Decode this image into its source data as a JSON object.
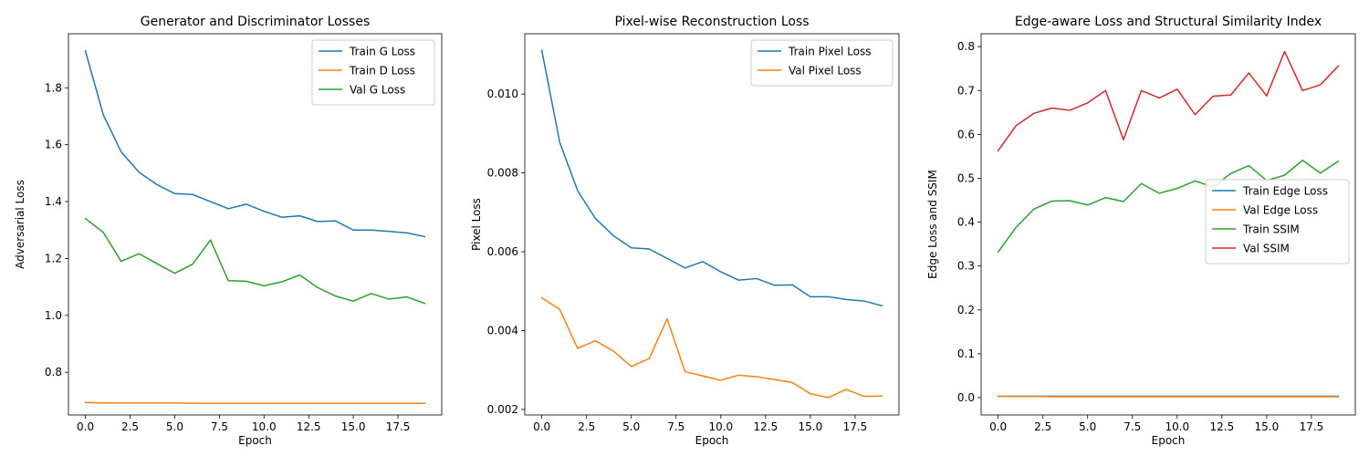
{
  "chart_data": [
    {
      "type": "line",
      "title": "Generator and Discriminator Losses",
      "xlabel": "Epoch",
      "ylabel": "Adversarial Loss",
      "xlim": [
        -0.95,
        19.95
      ],
      "ylim": [
        0.65,
        1.99
      ],
      "xticks": [
        0,
        2.5,
        5,
        7.5,
        10,
        12.5,
        15,
        17.5
      ],
      "xtick_labels": [
        "0.0",
        "2.5",
        "5.0",
        "7.5",
        "10.0",
        "12.5",
        "15.0",
        "17.5"
      ],
      "yticks": [
        0.8,
        1.0,
        1.2,
        1.4,
        1.6,
        1.8
      ],
      "ytick_labels": [
        "0.8",
        "1.0",
        "1.2",
        "1.4",
        "1.6",
        "1.8"
      ],
      "grid": false,
      "legend_position": "top-right",
      "x": [
        0,
        1,
        2,
        3,
        4,
        5,
        6,
        7,
        8,
        9,
        10,
        11,
        12,
        13,
        14,
        15,
        16,
        17,
        18,
        19
      ],
      "series": [
        {
          "name": "Train G Loss",
          "color": "#1f77b4",
          "values": [
            1.93,
            1.705,
            1.575,
            1.503,
            1.46,
            1.428,
            1.425,
            1.4,
            1.375,
            1.391,
            1.366,
            1.345,
            1.35,
            1.33,
            1.332,
            1.3,
            1.3,
            1.295,
            1.29,
            1.277
          ]
        },
        {
          "name": "Train D Loss",
          "color": "#ff7f0e",
          "values": [
            0.694,
            0.692,
            0.692,
            0.692,
            0.692,
            0.692,
            0.691,
            0.691,
            0.691,
            0.691,
            0.691,
            0.691,
            0.691,
            0.691,
            0.691,
            0.691,
            0.691,
            0.691,
            0.691,
            0.691
          ]
        },
        {
          "name": "Val G Loss",
          "color": "#2ca02c",
          "values": [
            1.34,
            1.292,
            1.19,
            1.217,
            1.182,
            1.148,
            1.18,
            1.265,
            1.122,
            1.12,
            1.104,
            1.118,
            1.142,
            1.098,
            1.068,
            1.05,
            1.077,
            1.057,
            1.065,
            1.042
          ]
        }
      ]
    },
    {
      "type": "line",
      "title": "Pixel-wise Reconstruction Loss",
      "xlabel": "Epoch",
      "ylabel": "Pixel Loss",
      "xlim": [
        -0.95,
        19.95
      ],
      "ylim": [
        0.00186,
        0.01153
      ],
      "xticks": [
        0,
        2.5,
        5,
        7.5,
        10,
        12.5,
        15,
        17.5
      ],
      "xtick_labels": [
        "0.0",
        "2.5",
        "5.0",
        "7.5",
        "10.0",
        "12.5",
        "15.0",
        "17.5"
      ],
      "yticks": [
        0.002,
        0.004,
        0.006,
        0.008,
        0.01
      ],
      "ytick_labels": [
        "0.002",
        "0.004",
        "0.006",
        "0.008",
        "0.010"
      ],
      "grid": false,
      "legend_position": "top-right",
      "x": [
        0,
        1,
        2,
        3,
        4,
        5,
        6,
        7,
        8,
        9,
        10,
        11,
        12,
        13,
        14,
        15,
        16,
        17,
        18,
        19
      ],
      "series": [
        {
          "name": "Train Pixel Loss",
          "color": "#1f77b4",
          "values": [
            0.01111,
            0.00878,
            0.00755,
            0.00684,
            0.00641,
            0.0061,
            0.00607,
            0.00583,
            0.00559,
            0.00575,
            0.00549,
            0.00528,
            0.00532,
            0.00515,
            0.00516,
            0.00486,
            0.00486,
            0.00479,
            0.00475,
            0.00463
          ]
        },
        {
          "name": "Val Pixel Loss",
          "color": "#ff7f0e",
          "values": [
            0.00483,
            0.00454,
            0.00355,
            0.00374,
            0.00348,
            0.00309,
            0.00329,
            0.0043,
            0.00296,
            0.00285,
            0.00274,
            0.00287,
            0.00283,
            0.00276,
            0.00268,
            0.0024,
            0.0023,
            0.00251,
            0.00233,
            0.00234
          ]
        }
      ]
    },
    {
      "type": "line",
      "title": "Edge-aware Loss and Structural Similarity Index",
      "xlabel": "Epoch",
      "ylabel": "Edge Loss and SSIM",
      "xlim": [
        -0.95,
        19.95
      ],
      "ylim": [
        -0.0395,
        0.8295
      ],
      "xticks": [
        0,
        2.5,
        5,
        7.5,
        10,
        12.5,
        15,
        17.5
      ],
      "xtick_labels": [
        "0.0",
        "2.5",
        "5.0",
        "7.5",
        "10.0",
        "12.5",
        "15.0",
        "17.5"
      ],
      "yticks": [
        0.0,
        0.1,
        0.2,
        0.3,
        0.4,
        0.5,
        0.6,
        0.7,
        0.8
      ],
      "ytick_labels": [
        "0.0",
        "0.1",
        "0.2",
        "0.3",
        "0.4",
        "0.5",
        "0.6",
        "0.7",
        "0.8"
      ],
      "grid": false,
      "legend_position": "center-right",
      "x": [
        0,
        1,
        2,
        3,
        4,
        5,
        6,
        7,
        8,
        9,
        10,
        11,
        12,
        13,
        14,
        15,
        16,
        17,
        18,
        19
      ],
      "series": [
        {
          "name": "Train Edge Loss",
          "color": "#1f77b4",
          "values": [
            0.003,
            0.003,
            0.003,
            0.003,
            0.003,
            0.003,
            0.003,
            0.003,
            0.003,
            0.003,
            0.003,
            0.003,
            0.003,
            0.003,
            0.003,
            0.003,
            0.003,
            0.003,
            0.003,
            0.003
          ]
        },
        {
          "name": "Val Edge Loss",
          "color": "#ff7f0e",
          "values": [
            0.003,
            0.003,
            0.003,
            0.002,
            0.002,
            0.002,
            0.002,
            0.002,
            0.002,
            0.002,
            0.002,
            0.002,
            0.002,
            0.002,
            0.002,
            0.002,
            0.002,
            0.002,
            0.002,
            0.002
          ]
        },
        {
          "name": "Train SSIM",
          "color": "#2ca02c",
          "values": [
            0.332,
            0.388,
            0.43,
            0.448,
            0.449,
            0.439,
            0.456,
            0.447,
            0.488,
            0.466,
            0.477,
            0.494,
            0.48,
            0.511,
            0.529,
            0.495,
            0.507,
            0.541,
            0.512,
            0.539
          ]
        },
        {
          "name": "Val SSIM",
          "color": "#d62728",
          "values": [
            0.563,
            0.62,
            0.648,
            0.66,
            0.655,
            0.672,
            0.7,
            0.588,
            0.7,
            0.683,
            0.703,
            0.645,
            0.687,
            0.69,
            0.74,
            0.688,
            0.789,
            0.7,
            0.713,
            0.756
          ]
        }
      ]
    }
  ]
}
